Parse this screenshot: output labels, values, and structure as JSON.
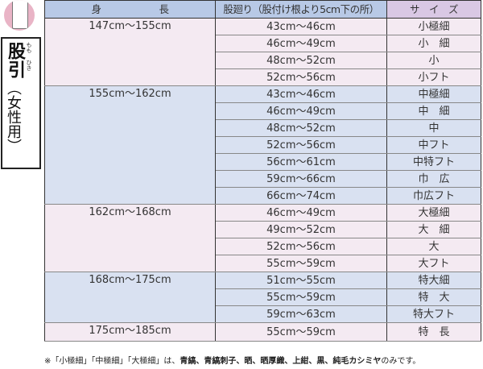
{
  "side": {
    "title": "股引",
    "subtitle": "（女性用）",
    "ruby1": "もも",
    "ruby2": "ひき"
  },
  "headers": {
    "height": "身　　　　　　長",
    "hip": "股廻り（股付け根より5cm下の所）",
    "size": "サ　イ　ズ"
  },
  "colors": {
    "pink": "#f4eaf2",
    "blue": "#d9e1f1",
    "header": "#b8c9e6",
    "size_header": "#d9c8e4"
  },
  "groups": [
    {
      "height": "147cm〜155cm",
      "tone": "p",
      "rows": [
        [
          "43cm〜46cm",
          "小極細"
        ],
        [
          "46cm〜49cm",
          "小　細"
        ],
        [
          "48cm〜52cm",
          "小"
        ],
        [
          "52cm〜56cm",
          "小フト"
        ]
      ]
    },
    {
      "height": "155cm〜162cm",
      "tone": "b",
      "rows": [
        [
          "43cm〜46cm",
          "中極細"
        ],
        [
          "46cm〜49cm",
          "中　細"
        ],
        [
          "48cm〜52cm",
          "中"
        ],
        [
          "52cm〜56cm",
          "中フト"
        ],
        [
          "56cm〜61cm",
          "中特フト"
        ],
        [
          "59cm〜66cm",
          "巾　広"
        ],
        [
          "66cm〜74cm",
          "巾広フト"
        ]
      ]
    },
    {
      "height": "162cm〜168cm",
      "tone": "p",
      "rows": [
        [
          "46cm〜49cm",
          "大極細"
        ],
        [
          "49cm〜52cm",
          "大　細"
        ],
        [
          "52cm〜56cm",
          "大"
        ],
        [
          "55cm〜59cm",
          "大フト"
        ]
      ]
    },
    {
      "height": "168cm〜175cm",
      "tone": "b",
      "rows": [
        [
          "51cm〜55cm",
          "特大細"
        ],
        [
          "55cm〜59cm",
          "特　大"
        ],
        [
          "59cm〜63cm",
          "特大フト"
        ]
      ]
    },
    {
      "height": "175cm〜185cm",
      "tone": "p",
      "rows": [
        [
          "55cm〜59cm",
          "特　長"
        ]
      ]
    }
  ],
  "note": {
    "pre": "※「小極細」「中極細」「大極細」は、",
    "bold": "青縞、青縞刺子、晒、晒厚織、上紺、黒、純毛カシミヤ",
    "post": "のみです。"
  }
}
